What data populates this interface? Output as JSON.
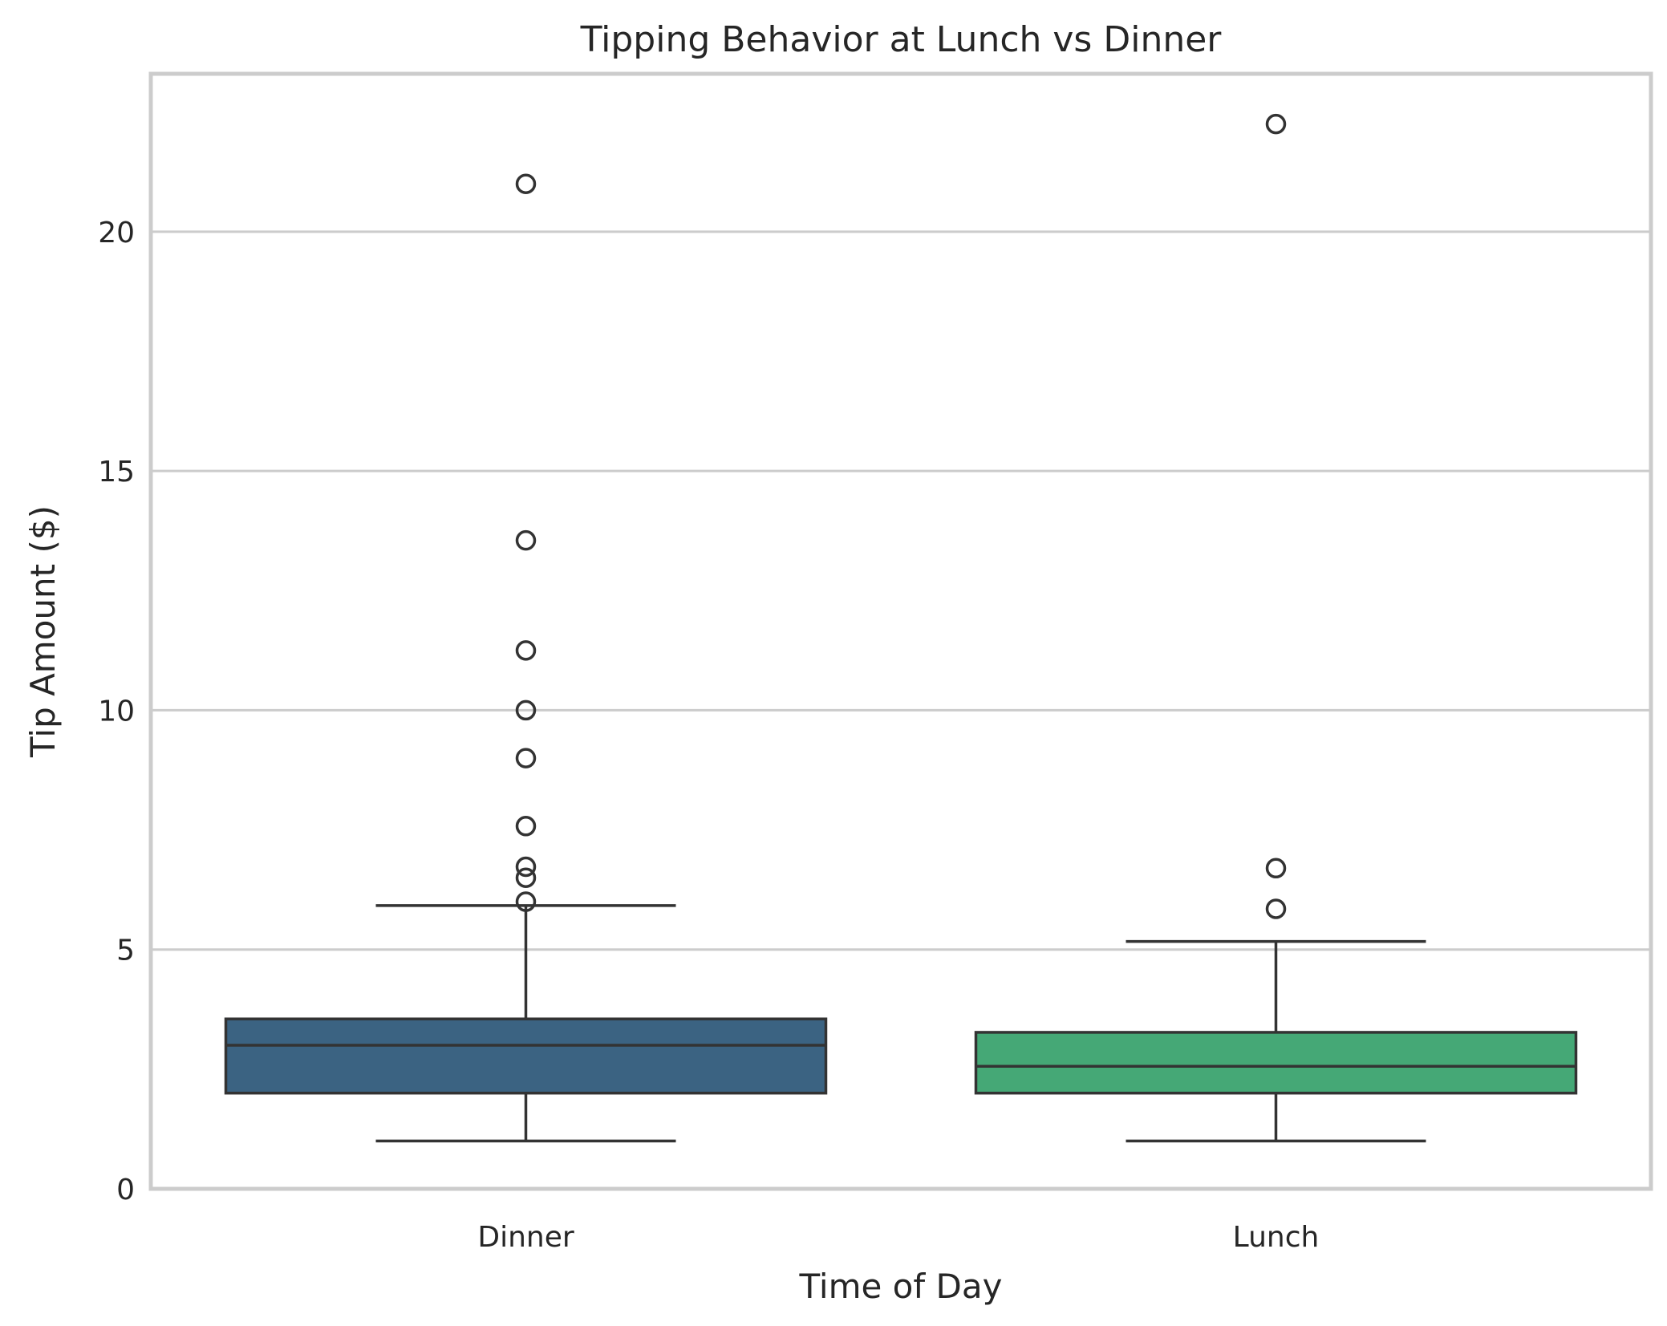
{
  "chart_data": {
    "type": "box",
    "title": "Tipping Behavior at Lunch vs Dinner",
    "xlabel": "Time of Day",
    "ylabel": "Tip Amount ($)",
    "ylim": [
      0,
      23.3
    ],
    "yticks": [
      0,
      5,
      10,
      15,
      20
    ],
    "grid": true,
    "categories": [
      "Dinner",
      "Lunch"
    ],
    "series": [
      {
        "category": "Dinner",
        "color": "#3b6382",
        "whisker_low": 1.0,
        "q1": 2.0,
        "median": 3.0,
        "q3": 3.55,
        "whisker_high": 5.92,
        "outliers": [
          21.0,
          13.55,
          11.25,
          10.0,
          9.0,
          7.58,
          6.73,
          6.5,
          6.0
        ]
      },
      {
        "category": "Lunch",
        "color": "#45a876",
        "whisker_low": 1.0,
        "q1": 2.0,
        "median": 2.56,
        "q3": 3.27,
        "whisker_high": 5.17,
        "outliers": [
          22.25,
          6.7,
          5.85
        ]
      }
    ]
  }
}
